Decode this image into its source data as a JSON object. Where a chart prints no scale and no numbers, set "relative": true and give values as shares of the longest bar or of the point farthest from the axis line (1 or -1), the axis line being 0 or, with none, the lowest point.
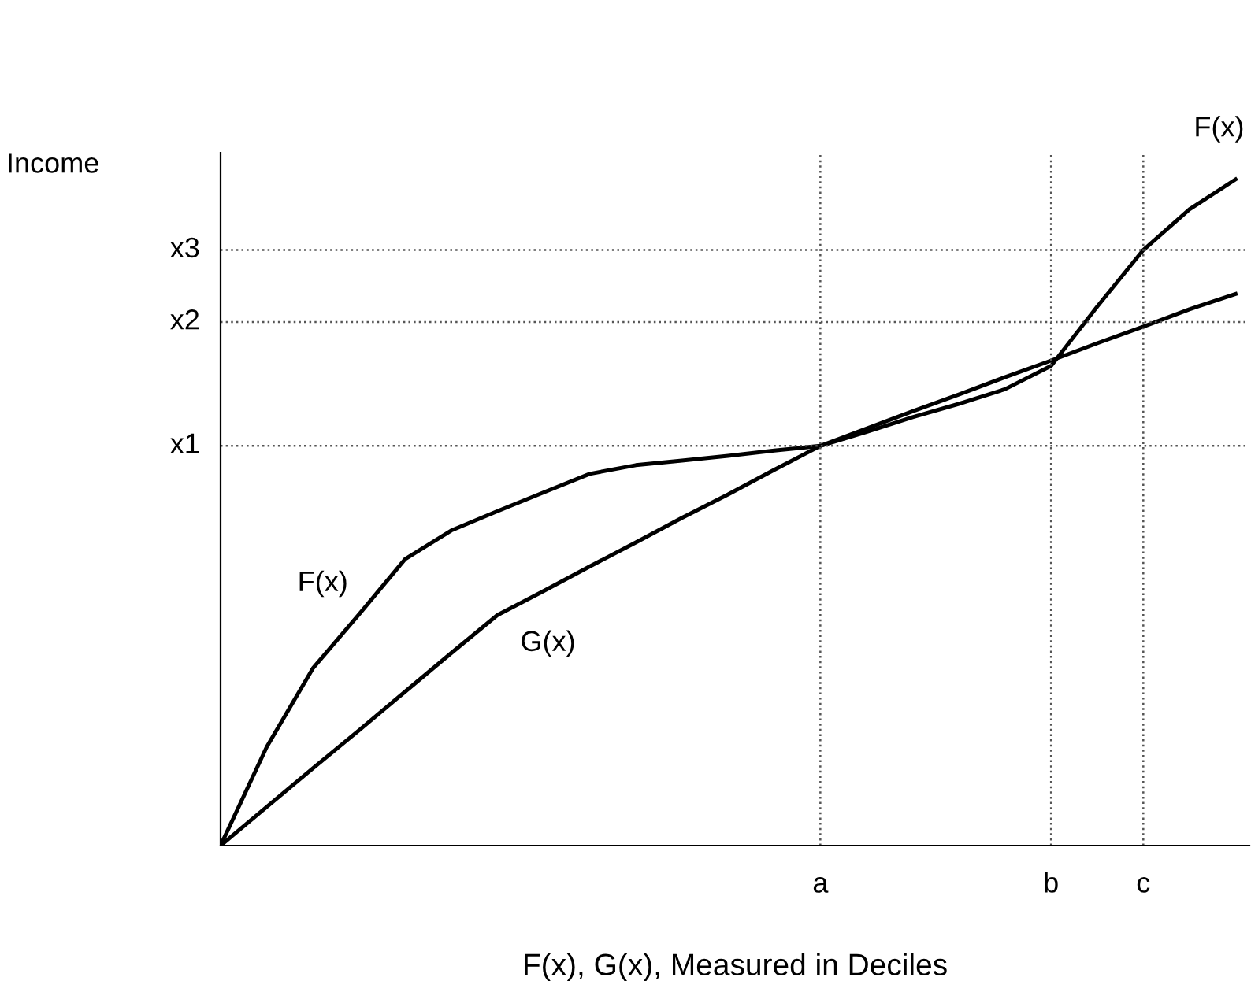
{
  "chart_data": {
    "type": "line",
    "relative": true,
    "ylabel": "Income",
    "xlabel": "F(x), G(x), Measured in Deciles",
    "categories": [
      null,
      null,
      null,
      null,
      null,
      null,
      null,
      null,
      null,
      null,
      null,
      null,
      null,
      "a",
      null,
      null,
      null,
      null,
      "b",
      null,
      "c",
      null,
      null
    ],
    "series": [
      {
        "name": "F(x)",
        "color": "#000000",
        "values": [
          0,
          0.148,
          0.266,
          0.347,
          0.43,
          0.473,
          0.502,
          0.53,
          0.558,
          0.571,
          0.578,
          0.585,
          0.593,
          0.6,
          0.621,
          0.643,
          0.663,
          0.685,
          0.72,
          0.809,
          0.894,
          0.955,
          1.0
        ]
      },
      {
        "name": "G(x)",
        "color": "#000000",
        "values": [
          0,
          0.058,
          0.116,
          0.173,
          0.231,
          0.289,
          0.346,
          0.382,
          0.419,
          0.455,
          0.492,
          0.527,
          0.564,
          0.6,
          0.626,
          0.652,
          0.677,
          0.703,
          0.728,
          0.754,
          0.779,
          0.805,
          0.828
        ]
      }
    ],
    "ref_lines": [
      {
        "axis": "y",
        "value": 0.6,
        "label": "x1",
        "line_style": "dotted",
        "color": "#555555"
      },
      {
        "axis": "y",
        "value": 0.786,
        "label": "x2",
        "line_style": "dotted",
        "color": "#555555"
      },
      {
        "axis": "y",
        "value": 0.894,
        "label": "x3",
        "line_style": "dotted",
        "color": "#555555"
      },
      {
        "axis": "x",
        "value": "a",
        "line_style": "dotted",
        "color": "#555555"
      },
      {
        "axis": "x",
        "value": "b",
        "line_style": "dotted",
        "color": "#555555"
      },
      {
        "axis": "x",
        "value": "c",
        "line_style": "dotted",
        "color": "#555555"
      }
    ],
    "annotations": [
      {
        "text": "F(x)",
        "y": 1.0
      }
    ],
    "marker": "none",
    "line_style": "solid"
  }
}
